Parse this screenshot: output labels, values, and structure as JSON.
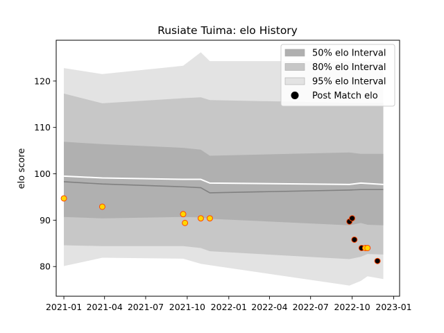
{
  "chart_data": {
    "type": "line",
    "title": "Rusiate Tuima: elo History",
    "xlabel": "",
    "ylabel": "elo score",
    "xlim": [
      "2020-12-15",
      "2023-01-14"
    ],
    "ylim": [
      73.6,
      128.8
    ],
    "x_ticks": [
      "2021-01",
      "2021-04",
      "2021-07",
      "2021-10",
      "2022-01",
      "2022-04",
      "2022-07",
      "2022-10",
      "2023-01"
    ],
    "y_ticks": [
      80,
      90,
      100,
      110,
      120
    ],
    "legend_position": "top-right",
    "grid": false,
    "legend": [
      {
        "label": "50% elo Interval",
        "kind": "band",
        "key": "band50"
      },
      {
        "label": "80% elo Interval",
        "kind": "band",
        "key": "band80"
      },
      {
        "label": "95% elo Interval",
        "kind": "band",
        "key": "band95"
      },
      {
        "label": "Post Match elo",
        "kind": "marker",
        "key": "marker"
      }
    ],
    "colors": {
      "band50": "#b0b0b0",
      "band80": "#c7c7c7",
      "band95": "#e3e3e3",
      "mean_line": "#ffffff",
      "median_line": "#808080",
      "marker_light_fill": "#ffd700",
      "marker_dark_fill": "#000000",
      "marker_edge": "#ff4500"
    },
    "band_x": [
      "2021-01-01",
      "2021-03-27",
      "2021-09-22",
      "2021-10-31",
      "2021-11-20",
      "2022-09-25",
      "2022-10-20",
      "2022-11-04",
      "2022-12-09"
    ],
    "series": [
      {
        "name": "95% elo Interval",
        "key": "band95",
        "upper": [
          122.8,
          121.5,
          123.3,
          126.2,
          124.3,
          124.3,
          124.3,
          124.3,
          124.3
        ],
        "lower": [
          80.1,
          81.9,
          81.7,
          80.6,
          80.3,
          75.9,
          76.9,
          77.9,
          77.3
        ]
      },
      {
        "name": "80% elo Interval",
        "key": "band80",
        "upper": [
          117.3,
          115.2,
          116.3,
          116.5,
          115.9,
          115.3,
          115.3,
          115.3,
          115.3
        ],
        "lower": [
          84.6,
          84.4,
          84.4,
          84.0,
          83.3,
          81.6,
          82.1,
          82.7,
          82.6
        ]
      },
      {
        "name": "50% elo Interval",
        "key": "band50",
        "upper": [
          106.9,
          106.4,
          105.6,
          105.2,
          103.9,
          104.6,
          104.3,
          104.3,
          104.3
        ],
        "lower": [
          90.7,
          90.4,
          90.7,
          90.6,
          90.3,
          88.9,
          89.4,
          89.0,
          88.9
        ]
      },
      {
        "name": "",
        "key": "mean_line",
        "values": [
          99.5,
          99.1,
          98.8,
          98.8,
          98.0,
          97.7,
          98.0,
          97.9,
          97.7
        ]
      },
      {
        "name": "",
        "key": "median_line",
        "values": [
          98.3,
          97.8,
          97.2,
          97.0,
          95.9,
          96.5,
          96.6,
          96.6,
          96.6
        ]
      }
    ],
    "points": [
      {
        "x": "2021-01-01",
        "y": 94.7,
        "fill": "light"
      },
      {
        "x": "2021-03-27",
        "y": 92.9,
        "fill": "light"
      },
      {
        "x": "2021-09-22",
        "y": 91.3,
        "fill": "light"
      },
      {
        "x": "2021-09-26",
        "y": 89.4,
        "fill": "light"
      },
      {
        "x": "2021-10-31",
        "y": 90.4,
        "fill": "light"
      },
      {
        "x": "2021-11-20",
        "y": 90.4,
        "fill": "light"
      },
      {
        "x": "2022-09-25",
        "y": 89.7,
        "fill": "dark"
      },
      {
        "x": "2022-10-01",
        "y": 90.4,
        "fill": "dark"
      },
      {
        "x": "2022-10-06",
        "y": 85.8,
        "fill": "dark"
      },
      {
        "x": "2022-10-22",
        "y": 84.0,
        "fill": "dark"
      },
      {
        "x": "2022-10-30",
        "y": 84.0,
        "fill": "light"
      },
      {
        "x": "2022-11-04",
        "y": 84.0,
        "fill": "light"
      },
      {
        "x": "2022-11-26",
        "y": 81.2,
        "fill": "dark"
      }
    ]
  }
}
